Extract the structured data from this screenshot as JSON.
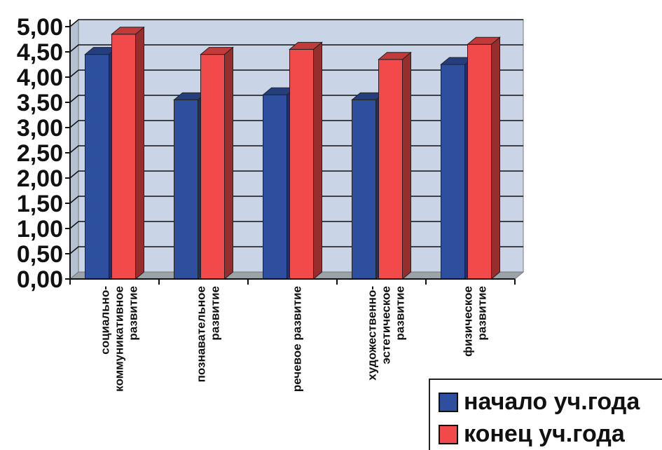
{
  "chart_data": {
    "type": "bar",
    "categories": [
      "социально-\nкоммуникативное\nразвитие",
      "познавательное\nразвитие",
      "речевое развитие",
      "художественно-\nэстетическое\nразвитие",
      "физическое\nразвитие"
    ],
    "series": [
      {
        "name": "начало уч.года",
        "values": [
          4.45,
          3.55,
          3.65,
          3.55,
          4.25
        ],
        "color": "#2e4f9e"
      },
      {
        "name": "конец уч.года",
        "values": [
          4.85,
          4.45,
          4.55,
          4.35,
          4.65
        ],
        "color": "#f24a4a"
      }
    ],
    "ylim": [
      0,
      5
    ],
    "yticks": [
      "0,00",
      "0,50",
      "1,00",
      "1,50",
      "2,00",
      "2,50",
      "3,00",
      "3,50",
      "4,00",
      "4,50",
      "5,00"
    ],
    "grid": true,
    "legend_position": "bottom-right"
  },
  "colors": {
    "plot_background": "#c9d4e6",
    "floor": "#9aa3a8",
    "grid": "#111111"
  }
}
